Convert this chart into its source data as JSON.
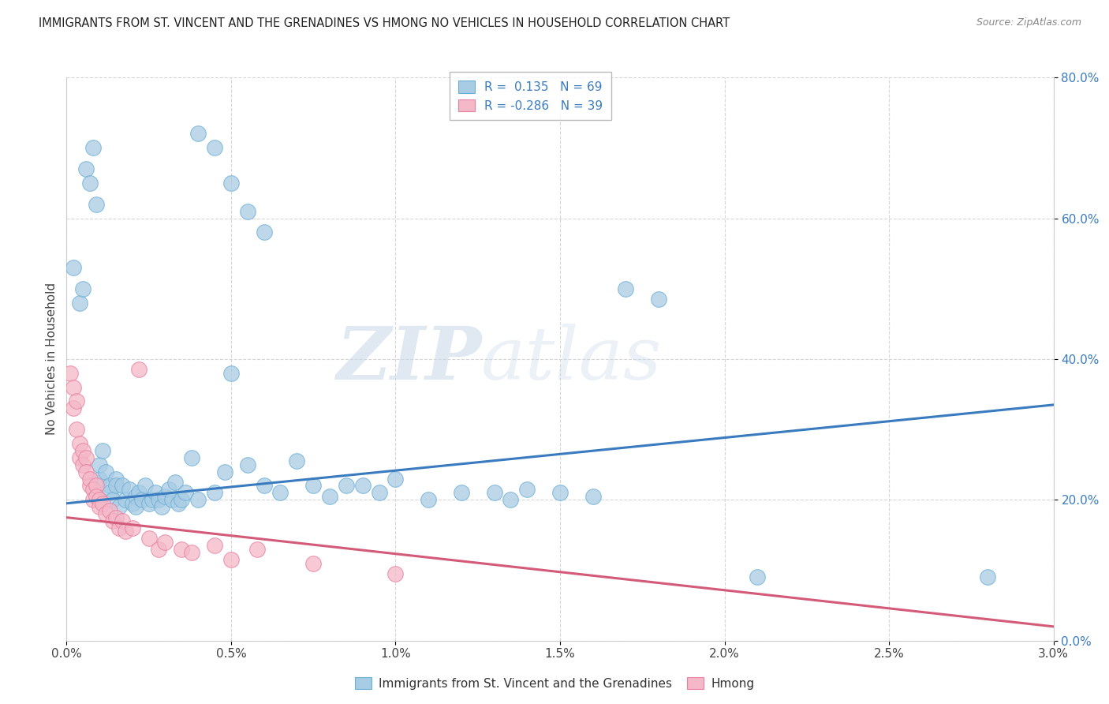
{
  "title": "IMMIGRANTS FROM ST. VINCENT AND THE GRENADINES VS HMONG NO VEHICLES IN HOUSEHOLD CORRELATION CHART",
  "source": "Source: ZipAtlas.com",
  "xlabel_blue": "Immigrants from St. Vincent and the Grenadines",
  "xlabel_pink": "Hmong",
  "ylabel": "No Vehicles in Household",
  "xlim": [
    0.0,
    3.0
  ],
  "ylim": [
    0.0,
    80.0
  ],
  "xticks": [
    0.0,
    0.5,
    1.0,
    1.5,
    2.0,
    2.5,
    3.0
  ],
  "yticks": [
    0.0,
    20.0,
    40.0,
    60.0,
    80.0
  ],
  "blue_R": 0.135,
  "blue_N": 69,
  "pink_R": -0.286,
  "pink_N": 39,
  "blue_color": "#a8cce4",
  "pink_color": "#f4b8c8",
  "blue_line_color": "#3a7bbf",
  "pink_line_color": "#d45a7a",
  "blue_marker_edge": "#6baed6",
  "pink_marker_edge": "#e87fa0",
  "watermark_zip": "ZIP",
  "watermark_atlas": "atlas",
  "blue_points": [
    [
      0.02,
      53.0
    ],
    [
      0.04,
      48.0
    ],
    [
      0.05,
      50.0
    ],
    [
      0.06,
      67.0
    ],
    [
      0.07,
      65.0
    ],
    [
      0.08,
      70.0
    ],
    [
      0.09,
      62.0
    ],
    [
      0.1,
      23.0
    ],
    [
      0.1,
      25.0
    ],
    [
      0.11,
      27.0
    ],
    [
      0.12,
      24.0
    ],
    [
      0.13,
      22.0
    ],
    [
      0.13,
      21.0
    ],
    [
      0.14,
      20.0
    ],
    [
      0.15,
      23.0
    ],
    [
      0.15,
      22.0
    ],
    [
      0.16,
      19.0
    ],
    [
      0.17,
      22.0
    ],
    [
      0.18,
      20.0
    ],
    [
      0.19,
      21.5
    ],
    [
      0.2,
      19.5
    ],
    [
      0.21,
      20.5
    ],
    [
      0.21,
      19.0
    ],
    [
      0.22,
      21.0
    ],
    [
      0.23,
      20.0
    ],
    [
      0.24,
      22.0
    ],
    [
      0.25,
      19.5
    ],
    [
      0.26,
      20.0
    ],
    [
      0.27,
      21.0
    ],
    [
      0.28,
      20.0
    ],
    [
      0.29,
      19.0
    ],
    [
      0.3,
      20.5
    ],
    [
      0.31,
      21.5
    ],
    [
      0.32,
      20.0
    ],
    [
      0.33,
      22.5
    ],
    [
      0.34,
      19.5
    ],
    [
      0.35,
      20.0
    ],
    [
      0.36,
      21.0
    ],
    [
      0.38,
      26.0
    ],
    [
      0.4,
      20.0
    ],
    [
      0.45,
      21.0
    ],
    [
      0.48,
      24.0
    ],
    [
      0.5,
      38.0
    ],
    [
      0.55,
      25.0
    ],
    [
      0.6,
      22.0
    ],
    [
      0.65,
      21.0
    ],
    [
      0.7,
      25.5
    ],
    [
      0.75,
      22.0
    ],
    [
      0.8,
      20.5
    ],
    [
      0.85,
      22.0
    ],
    [
      0.9,
      22.0
    ],
    [
      0.95,
      21.0
    ],
    [
      1.0,
      23.0
    ],
    [
      1.1,
      20.0
    ],
    [
      1.2,
      21.0
    ],
    [
      1.3,
      21.0
    ],
    [
      1.35,
      20.0
    ],
    [
      1.4,
      21.5
    ],
    [
      1.5,
      21.0
    ],
    [
      1.6,
      20.5
    ],
    [
      1.7,
      50.0
    ],
    [
      1.8,
      48.5
    ],
    [
      2.1,
      9.0
    ],
    [
      2.8,
      9.0
    ],
    [
      0.55,
      61.0
    ],
    [
      0.5,
      65.0
    ],
    [
      0.6,
      58.0
    ],
    [
      0.45,
      70.0
    ],
    [
      0.4,
      72.0
    ]
  ],
  "pink_points": [
    [
      0.01,
      38.0
    ],
    [
      0.02,
      36.0
    ],
    [
      0.02,
      33.0
    ],
    [
      0.03,
      34.0
    ],
    [
      0.03,
      30.0
    ],
    [
      0.04,
      28.0
    ],
    [
      0.04,
      26.0
    ],
    [
      0.05,
      27.0
    ],
    [
      0.05,
      25.0
    ],
    [
      0.06,
      26.0
    ],
    [
      0.06,
      24.0
    ],
    [
      0.07,
      22.0
    ],
    [
      0.07,
      23.0
    ],
    [
      0.08,
      21.5
    ],
    [
      0.08,
      20.0
    ],
    [
      0.09,
      22.0
    ],
    [
      0.09,
      20.5
    ],
    [
      0.1,
      20.0
    ],
    [
      0.1,
      19.0
    ],
    [
      0.11,
      19.5
    ],
    [
      0.12,
      18.0
    ],
    [
      0.13,
      18.5
    ],
    [
      0.14,
      17.0
    ],
    [
      0.15,
      17.5
    ],
    [
      0.16,
      16.0
    ],
    [
      0.17,
      17.0
    ],
    [
      0.18,
      15.5
    ],
    [
      0.2,
      16.0
    ],
    [
      0.22,
      38.5
    ],
    [
      0.25,
      14.5
    ],
    [
      0.28,
      13.0
    ],
    [
      0.3,
      14.0
    ],
    [
      0.35,
      13.0
    ],
    [
      0.38,
      12.5
    ],
    [
      0.45,
      13.5
    ],
    [
      0.5,
      11.5
    ],
    [
      0.58,
      13.0
    ],
    [
      0.75,
      11.0
    ],
    [
      1.0,
      9.5
    ]
  ],
  "blue_line": [
    [
      0.0,
      19.5
    ],
    [
      3.0,
      33.5
    ]
  ],
  "pink_line": [
    [
      0.0,
      17.5
    ],
    [
      3.0,
      2.0
    ]
  ]
}
